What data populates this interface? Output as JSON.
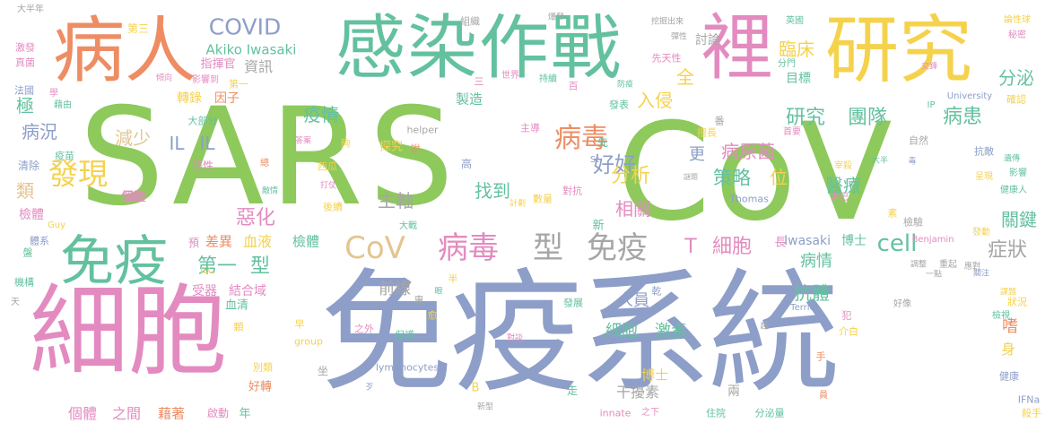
{
  "palette": {
    "green": "#8ec95c",
    "blue": "#8d9ec8",
    "pink": "#e38bc0",
    "orange": "#ee8d63",
    "teal": "#63c19f",
    "yellow": "#f5d24c",
    "tan": "#e3c590",
    "gray": "#a6a6a6"
  },
  "words": [
    {
      "text": "SARS",
      "color": "green"
    },
    {
      "text": "CoV",
      "color": "green"
    },
    {
      "text": "免疫系統",
      "color": "blue"
    },
    {
      "text": "細胞",
      "color": "pink"
    },
    {
      "text": "感染作戰",
      "color": "teal"
    },
    {
      "text": "病人",
      "color": "orange"
    },
    {
      "text": "研究",
      "color": "yellow"
    },
    {
      "text": "裡",
      "color": "pink"
    },
    {
      "text": "免疫",
      "color": "teal"
    },
    {
      "text": "CoV",
      "color": "tan"
    },
    {
      "text": "病毒",
      "color": "pink"
    },
    {
      "text": "型",
      "color": "gray"
    },
    {
      "text": "免疫",
      "color": "gray"
    },
    {
      "text": "COVID",
      "color": "blue"
    },
    {
      "text": "發現",
      "color": "yellow"
    },
    {
      "text": "病毒",
      "color": "orange"
    },
    {
      "text": "研究",
      "color": "teal"
    },
    {
      "text": "團隊",
      "color": "teal"
    },
    {
      "text": "病患",
      "color": "teal"
    },
    {
      "text": "cell",
      "color": "teal"
    },
    {
      "text": "症狀",
      "color": "gray"
    },
    {
      "text": "第一",
      "color": "teal"
    },
    {
      "text": "型",
      "color": "teal"
    },
    {
      "text": "T",
      "color": "pink"
    },
    {
      "text": "細胞",
      "color": "pink"
    },
    {
      "text": "好好",
      "color": "blue"
    },
    {
      "text": "分析",
      "color": "yellow"
    },
    {
      "text": "策略",
      "color": "teal"
    },
    {
      "text": "找到",
      "color": "teal"
    },
    {
      "text": "病原菌",
      "color": "pink"
    },
    {
      "text": "疫情",
      "color": "teal"
    },
    {
      "text": "減少",
      "color": "tan"
    },
    {
      "text": "IL",
      "color": "blue"
    },
    {
      "text": "IL",
      "color": "blue"
    },
    {
      "text": "惡化",
      "color": "pink"
    },
    {
      "text": "主軸",
      "color": "gray"
    },
    {
      "text": "相關",
      "color": "pink"
    },
    {
      "text": "位",
      "color": "yellow"
    },
    {
      "text": "醫療",
      "color": "teal"
    },
    {
      "text": "關鍵",
      "color": "teal"
    },
    {
      "text": "分泌",
      "color": "teal"
    },
    {
      "text": "臨床",
      "color": "yellow"
    },
    {
      "text": "入侵",
      "color": "yellow"
    },
    {
      "text": "病況",
      "color": "blue"
    },
    {
      "text": "類",
      "color": "tan"
    },
    {
      "text": "檢體",
      "color": "pink"
    },
    {
      "text": "個體",
      "color": "pink"
    },
    {
      "text": "資訊",
      "color": "gray"
    },
    {
      "text": "討論",
      "color": "gray"
    },
    {
      "text": "Akiko Iwasaki",
      "color": "teal"
    },
    {
      "text": "指揮官",
      "color": "pink"
    },
    {
      "text": "全",
      "color": "yellow"
    },
    {
      "text": "目標",
      "color": "teal"
    },
    {
      "text": "轉錄",
      "color": "yellow"
    },
    {
      "text": "因子",
      "color": "orange"
    },
    {
      "text": "極",
      "color": "teal"
    },
    {
      "text": "更",
      "color": "blue"
    },
    {
      "text": "血液",
      "color": "yellow"
    },
    {
      "text": "檢體",
      "color": "teal"
    },
    {
      "text": "差異",
      "color": "orange"
    },
    {
      "text": "受器",
      "color": "pink"
    },
    {
      "text": "結合域",
      "color": "pink"
    },
    {
      "text": "血清",
      "color": "teal"
    },
    {
      "text": "前線",
      "color": "gray"
    },
    {
      "text": "人員",
      "color": "blue"
    },
    {
      "text": "抗體",
      "color": "teal"
    },
    {
      "text": "病情",
      "color": "teal"
    },
    {
      "text": "細胞",
      "color": "teal"
    },
    {
      "text": "激素",
      "color": "teal"
    },
    {
      "text": "干擾素",
      "color": "gray"
    },
    {
      "text": "博士",
      "color": "yellow"
    },
    {
      "text": "個體",
      "color": "pink"
    },
    {
      "text": "之間",
      "color": "pink"
    },
    {
      "text": "藉著",
      "color": "orange"
    },
    {
      "text": "Iwasaki",
      "color": "blue"
    },
    {
      "text": "博士",
      "color": "teal"
    },
    {
      "text": "好轉",
      "color": "orange"
    },
    {
      "text": "嗜",
      "color": "orange"
    },
    {
      "text": "身",
      "color": "yellow"
    },
    {
      "text": "探究",
      "color": "yellow"
    },
    {
      "text": "陽性",
      "color": "pink"
    },
    {
      "text": "清除",
      "color": "blue"
    },
    {
      "text": "疫苗",
      "color": "teal"
    },
    {
      "text": "大半年",
      "color": "gray"
    },
    {
      "text": "第三",
      "color": "yellow"
    },
    {
      "text": "激發",
      "color": "pink"
    },
    {
      "text": "真菌",
      "color": "pink"
    },
    {
      "text": "法國",
      "color": "blue"
    },
    {
      "text": "藉由",
      "color": "teal"
    },
    {
      "text": "影響到",
      "color": "pink"
    },
    {
      "text": "第一",
      "color": "yellow"
    },
    {
      "text": "大部分",
      "color": "teal"
    },
    {
      "text": "西瓜",
      "color": "yellow"
    },
    {
      "text": "後續",
      "color": "yellow"
    },
    {
      "text": "大戰",
      "color": "teal"
    },
    {
      "text": "主導",
      "color": "pink"
    },
    {
      "text": "擅長",
      "color": "yellow"
    },
    {
      "text": "首要",
      "color": "pink"
    },
    {
      "text": "自然",
      "color": "gray"
    },
    {
      "text": "抗敵",
      "color": "blue"
    },
    {
      "text": "影響",
      "color": "teal"
    },
    {
      "text": "呈現",
      "color": "yellow"
    },
    {
      "text": "健康人",
      "color": "teal"
    },
    {
      "text": "Thomas",
      "color": "blue"
    },
    {
      "text": "淋巴",
      "color": "pink"
    },
    {
      "text": "宰殺",
      "color": "yellow"
    },
    {
      "text": "先天性",
      "color": "pink"
    },
    {
      "text": "英國",
      "color": "teal"
    },
    {
      "text": "分門",
      "color": "teal"
    },
    {
      "text": "確認",
      "color": "yellow"
    },
    {
      "text": "秘密",
      "color": "pink"
    },
    {
      "text": "論性球",
      "color": "yellow"
    },
    {
      "text": "University",
      "color": "blue"
    },
    {
      "text": "IP",
      "color": "teal"
    },
    {
      "text": "helper",
      "color": "gray"
    },
    {
      "text": "St",
      "color": "blue"
    },
    {
      "text": "Guy",
      "color": "yellow"
    },
    {
      "text": "ILC",
      "color": "yellow"
    },
    {
      "text": "Benjamin",
      "color": "pink"
    },
    {
      "text": "發動",
      "color": "yellow"
    },
    {
      "text": "檢驗",
      "color": "gray"
    },
    {
      "text": "素",
      "color": "yellow"
    },
    {
      "text": "group",
      "color": "yellow"
    },
    {
      "text": "之外",
      "color": "pink"
    },
    {
      "text": "保護",
      "color": "teal"
    },
    {
      "text": "發展",
      "color": "teal"
    },
    {
      "text": "lymphocytes",
      "color": "blue"
    },
    {
      "text": "Terrier",
      "color": "blue"
    },
    {
      "text": "犯",
      "color": "pink"
    },
    {
      "text": "好像",
      "color": "gray"
    },
    {
      "text": "介白",
      "color": "yellow"
    },
    {
      "text": "狀況",
      "color": "yellow"
    },
    {
      "text": "檢視",
      "color": "teal"
    },
    {
      "text": "健康",
      "color": "blue"
    },
    {
      "text": "殺手",
      "color": "yellow"
    },
    {
      "text": "IFNa",
      "color": "blue"
    },
    {
      "text": "innate",
      "color": "pink"
    },
    {
      "text": "之下",
      "color": "pink"
    },
    {
      "text": "住院",
      "color": "teal"
    },
    {
      "text": "分泌量",
      "color": "teal"
    },
    {
      "text": "兩",
      "color": "gray"
    },
    {
      "text": "新型",
      "color": "gray"
    },
    {
      "text": "B",
      "color": "yellow"
    },
    {
      "text": "啟動",
      "color": "pink"
    },
    {
      "text": "年",
      "color": "teal"
    },
    {
      "text": "別類",
      "color": "yellow"
    },
    {
      "text": "坐",
      "color": "gray"
    },
    {
      "text": "手",
      "color": "orange"
    },
    {
      "text": "員",
      "color": "orange"
    },
    {
      "text": "走",
      "color": "teal"
    },
    {
      "text": "新",
      "color": "teal"
    },
    {
      "text": "長",
      "color": "pink"
    },
    {
      "text": "預",
      "color": "pink"
    },
    {
      "text": "機構",
      "color": "teal"
    },
    {
      "text": "體系",
      "color": "blue"
    },
    {
      "text": "盤",
      "color": "teal"
    },
    {
      "text": "天",
      "color": "gray"
    },
    {
      "text": "個體",
      "color": "pink"
    },
    {
      "text": "製造",
      "color": "teal"
    },
    {
      "text": "先",
      "color": "teal"
    },
    {
      "text": "說",
      "color": "orange"
    },
    {
      "text": "高",
      "color": "blue"
    },
    {
      "text": "對抗",
      "color": "pink"
    },
    {
      "text": "數量",
      "color": "yellow"
    },
    {
      "text": "計劃",
      "color": "yellow"
    },
    {
      "text": "番",
      "color": "gray"
    },
    {
      "text": "越",
      "color": "gray"
    },
    {
      "text": "三",
      "color": "pink"
    },
    {
      "text": "世界",
      "color": "pink"
    },
    {
      "text": "持續",
      "color": "teal"
    },
    {
      "text": "百",
      "color": "pink"
    },
    {
      "text": "防疫",
      "color": "teal"
    },
    {
      "text": "組織",
      "color": "gray"
    },
    {
      "text": "爆發",
      "color": "gray"
    },
    {
      "text": "挖掘出來",
      "color": "gray"
    },
    {
      "text": "彈性",
      "color": "gray"
    },
    {
      "text": "發表",
      "color": "teal"
    },
    {
      "text": "總",
      "color": "orange"
    },
    {
      "text": "答案",
      "color": "pink"
    },
    {
      "text": "打仗",
      "color": "pink"
    },
    {
      "text": "敵情",
      "color": "teal"
    },
    {
      "text": "早",
      "color": "yellow"
    },
    {
      "text": "專",
      "color": "gray"
    },
    {
      "text": "乾",
      "color": "blue"
    },
    {
      "text": "半",
      "color": "yellow"
    },
    {
      "text": "眼",
      "color": "teal"
    },
    {
      "text": "顆",
      "color": "yellow"
    },
    {
      "text": "對談",
      "color": "pink"
    },
    {
      "text": "歹",
      "color": "blue"
    },
    {
      "text": "應對",
      "color": "gray"
    },
    {
      "text": "調整",
      "color": "gray"
    },
    {
      "text": "一點",
      "color": "gray"
    },
    {
      "text": "重起",
      "color": "gray"
    },
    {
      "text": "交鋒",
      "color": "pink"
    },
    {
      "text": "學",
      "color": "pink"
    },
    {
      "text": "傾向",
      "color": "pink"
    },
    {
      "text": "大半",
      "color": "teal"
    },
    {
      "text": "毒",
      "color": "blue"
    },
    {
      "text": "遺傳",
      "color": "teal"
    },
    {
      "text": "關注",
      "color": "blue"
    },
    {
      "text": "課題",
      "color": "yellow"
    },
    {
      "text": "謎題",
      "color": "gray"
    },
    {
      "text": "夠",
      "color": "yellow"
    },
    {
      "text": "愈",
      "color": "yellow"
    }
  ]
}
